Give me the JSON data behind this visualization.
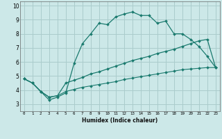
{
  "xlabel": "Humidex (Indice chaleur)",
  "bg_color": "#cce8e8",
  "grid_color": "#aacccc",
  "line_color": "#1a7a6e",
  "xlim": [
    -0.5,
    23.5
  ],
  "ylim": [
    2.5,
    10.3
  ],
  "xticks": [
    0,
    1,
    2,
    3,
    4,
    5,
    6,
    7,
    8,
    9,
    10,
    11,
    12,
    13,
    14,
    15,
    16,
    17,
    18,
    19,
    20,
    21,
    22,
    23
  ],
  "yticks": [
    3,
    4,
    5,
    6,
    7,
    8,
    9,
    10
  ],
  "line1_x": [
    0,
    1,
    2,
    3,
    4,
    5,
    6,
    7,
    8,
    9,
    10,
    11,
    12,
    13,
    14,
    15,
    16,
    17,
    18,
    19,
    20,
    21,
    22,
    23
  ],
  "line1_y": [
    4.8,
    4.5,
    3.9,
    3.3,
    3.5,
    3.8,
    5.9,
    7.3,
    8.0,
    8.75,
    8.65,
    9.2,
    9.4,
    9.55,
    9.3,
    9.3,
    8.75,
    8.9,
    8.0,
    8.0,
    7.6,
    7.1,
    6.4,
    5.6
  ],
  "line2_x": [
    0,
    1,
    2,
    3,
    4,
    5,
    6,
    7,
    8,
    9,
    10,
    11,
    12,
    13,
    14,
    15,
    16,
    17,
    18,
    19,
    20,
    21,
    22,
    23
  ],
  "line2_y": [
    4.8,
    4.5,
    3.9,
    3.5,
    3.6,
    4.5,
    4.7,
    4.9,
    5.15,
    5.3,
    5.5,
    5.7,
    5.9,
    6.1,
    6.25,
    6.4,
    6.6,
    6.75,
    6.9,
    7.1,
    7.3,
    7.5,
    7.6,
    5.6
  ],
  "line3_x": [
    0,
    1,
    2,
    3,
    4,
    5,
    6,
    7,
    8,
    9,
    10,
    11,
    12,
    13,
    14,
    15,
    16,
    17,
    18,
    19,
    20,
    21,
    22,
    23
  ],
  "line3_y": [
    4.8,
    4.5,
    3.9,
    3.5,
    3.6,
    3.9,
    4.05,
    4.2,
    4.3,
    4.4,
    4.5,
    4.6,
    4.75,
    4.85,
    4.95,
    5.05,
    5.15,
    5.25,
    5.35,
    5.45,
    5.5,
    5.55,
    5.6,
    5.6
  ]
}
